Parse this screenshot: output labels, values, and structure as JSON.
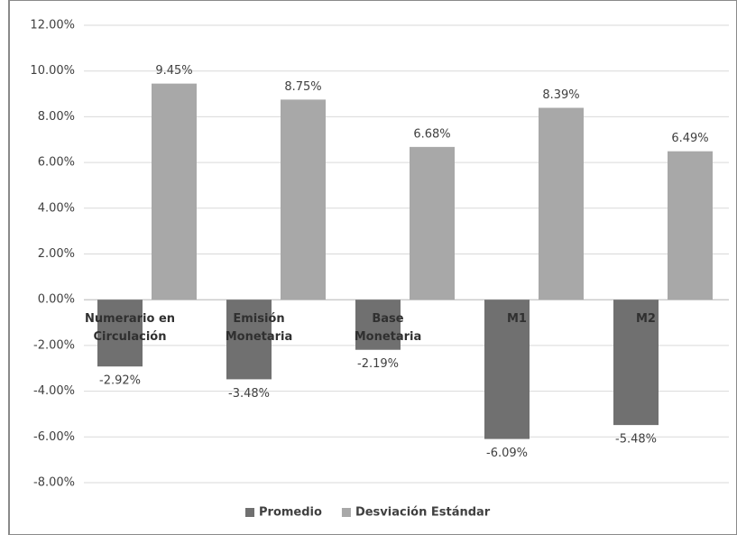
{
  "chart_data": {
    "type": "bar",
    "categories": [
      "Numerario en Circulación",
      "Emisión Monetaria",
      "Base Monetaria",
      "M1",
      "M2"
    ],
    "series": [
      {
        "name": "Promedio",
        "color": "#707070",
        "values": [
          -2.92,
          -3.48,
          -2.19,
          -6.09,
          -5.48
        ],
        "value_labels": [
          "-2.92%",
          "-3.48%",
          "-2.19%",
          "-6.09%",
          "-5.48%"
        ]
      },
      {
        "name": "Desviación Estándar",
        "color": "#a8a8a8",
        "values": [
          9.45,
          8.75,
          6.68,
          8.39,
          6.49
        ],
        "value_labels": [
          "9.45%",
          "8.75%",
          "6.68%",
          "8.39%",
          "6.49%"
        ]
      }
    ],
    "ylim": [
      -8,
      12
    ],
    "yticks": [
      {
        "value": -8,
        "label": "-8.00%"
      },
      {
        "value": -6,
        "label": "-6.00%"
      },
      {
        "value": -4,
        "label": "-4.00%"
      },
      {
        "value": -2,
        "label": "-2.00%"
      },
      {
        "value": 0,
        "label": "0.00%"
      },
      {
        "value": 2,
        "label": "2.00%"
      },
      {
        "value": 4,
        "label": "4.00%"
      },
      {
        "value": 6,
        "label": "6.00%"
      },
      {
        "value": 8,
        "label": "8.00%"
      },
      {
        "value": 10,
        "label": "10.00%"
      },
      {
        "value": 12,
        "label": "12.00%"
      }
    ],
    "grid": true,
    "legend": "bottom"
  }
}
